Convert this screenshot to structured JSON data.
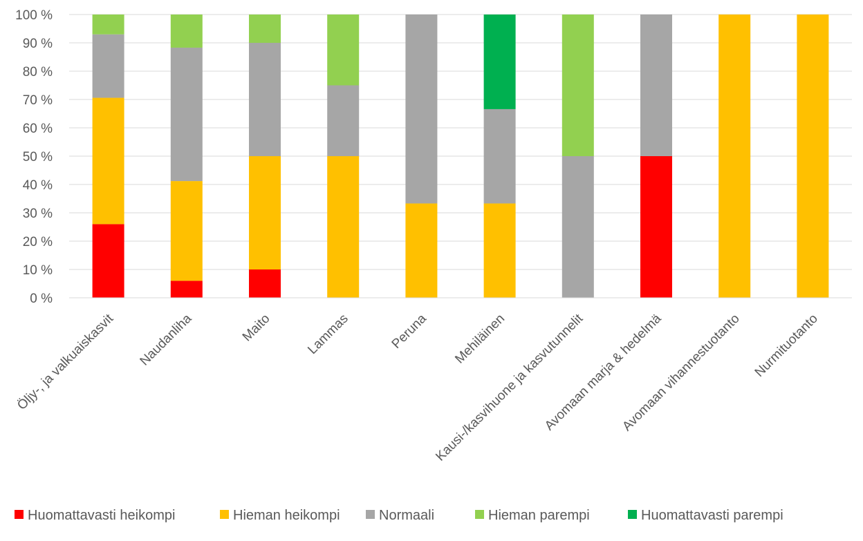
{
  "chart_data": {
    "type": "bar",
    "stacked": "percent",
    "categories": [
      "Öljy-, ja valkuaiskasvit",
      "Naudanliha",
      "Maito",
      "Lammas",
      "Peruna",
      "Mehiläinen",
      "Kausi-/kasvihuone ja kasvutunnelit",
      "Avomaan marja & hedelmä",
      "Avomaan vihannestuotanto",
      "Nurmituotanto"
    ],
    "series": [
      {
        "name": "Huomattavasti heikompi",
        "color": "#ff0000",
        "values": [
          26,
          6,
          10,
          0,
          0,
          0,
          0,
          50,
          0,
          0
        ]
      },
      {
        "name": "Hieman heikompi",
        "color": "#ffc000",
        "values": [
          44.6,
          35.2,
          40,
          50,
          33.3,
          33.3,
          0,
          0,
          100,
          100
        ]
      },
      {
        "name": "Normaali",
        "color": "#a6a6a6",
        "values": [
          22.4,
          47.1,
          40,
          25,
          66.7,
          33.3,
          50,
          50,
          0,
          0
        ]
      },
      {
        "name": "Hieman parempi",
        "color": "#92d050",
        "values": [
          7,
          11.7,
          10,
          25,
          0,
          0,
          50,
          0,
          0,
          0
        ]
      },
      {
        "name": "Huomattavasti parempi",
        "color": "#00b050",
        "values": [
          0,
          0,
          0,
          0,
          0,
          33.4,
          0,
          0,
          0,
          0
        ]
      }
    ],
    "yticks": [
      "0 %",
      "10 %",
      "20 %",
      "30 %",
      "40 %",
      "50 %",
      "60 %",
      "70 %",
      "80 %",
      "90 %",
      "100 %"
    ],
    "ylim": [
      0,
      100
    ],
    "grid": true,
    "legend_position": "bottom",
    "gridline_color": "#d9d9d9"
  }
}
